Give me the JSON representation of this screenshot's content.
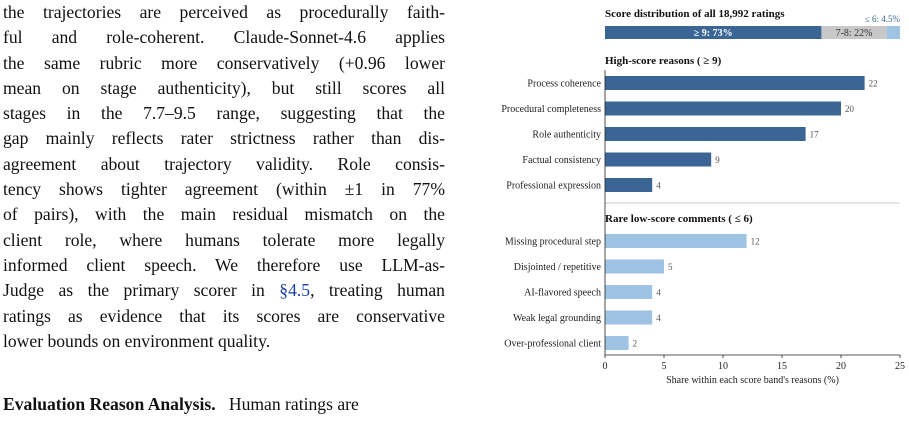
{
  "paragraph": {
    "lines": [
      "the trajectories are perceived as procedurally faith-",
      "ful and role-coherent. Claude-Sonnet-4.6 applies",
      "the same rubric more conservatively (+0.96 lower",
      "mean on stage authenticity), but still scores all",
      "stages in the 7.7–9.5 range, suggesting that the",
      "gap mainly reflects rater strictness rather than dis-",
      "agreement about trajectory validity. Role consis-",
      "tency shows tighter agreement (within ±1 in 77%",
      "of pairs), with the main residual mismatch on the",
      "client role, where humans tolerate more legally",
      "informed client speech. We therefore use LLM-as-"
    ],
    "line12_before": "Judge as the primary scorer in ",
    "line12_ref": "§4.5",
    "line12_after": ", treating human",
    "line13": "ratings as evidence that its scores are conservative",
    "line14": "lower bounds on environment quality.",
    "next_heading": "Evaluation Reason Analysis.",
    "next_text": "Human ratings are"
  },
  "chart_data": {
    "type": "bar",
    "distribution": {
      "title": "Score distribution of all 18,992 ratings",
      "segments": [
        {
          "label": "≥ 9: 73%",
          "value": 73,
          "color": "#3a6595"
        },
        {
          "label": "7-8: 22%",
          "value": 22,
          "color": "#c8c8c8"
        },
        {
          "label": "≤ 6: 4.5%",
          "value": 4.5,
          "color": "#9fc3e3"
        }
      ]
    },
    "high_panel": {
      "title": "High-score reasons ( ≥ 9)",
      "color": "#3a6595",
      "categories": [
        "Process coherence",
        "Procedural completeness",
        "Role authenticity",
        "Factual consistency",
        "Professional expression"
      ],
      "values": [
        22,
        20,
        17,
        9,
        4
      ]
    },
    "low_panel": {
      "title": "Rare low-score comments ( ≤ 6)",
      "color": "#9fc3e3",
      "categories": [
        "Missing procedural step",
        "Disjointed / repetitive",
        "AI-flavored speech",
        "Weak legal grounding",
        "Over-professional client"
      ],
      "values": [
        12,
        5,
        4,
        4,
        2
      ]
    },
    "xlim": [
      0,
      25
    ],
    "xticks": [
      0,
      5,
      10,
      15,
      20,
      25
    ],
    "xlabel": "Share within each score band's reasons (%)"
  }
}
